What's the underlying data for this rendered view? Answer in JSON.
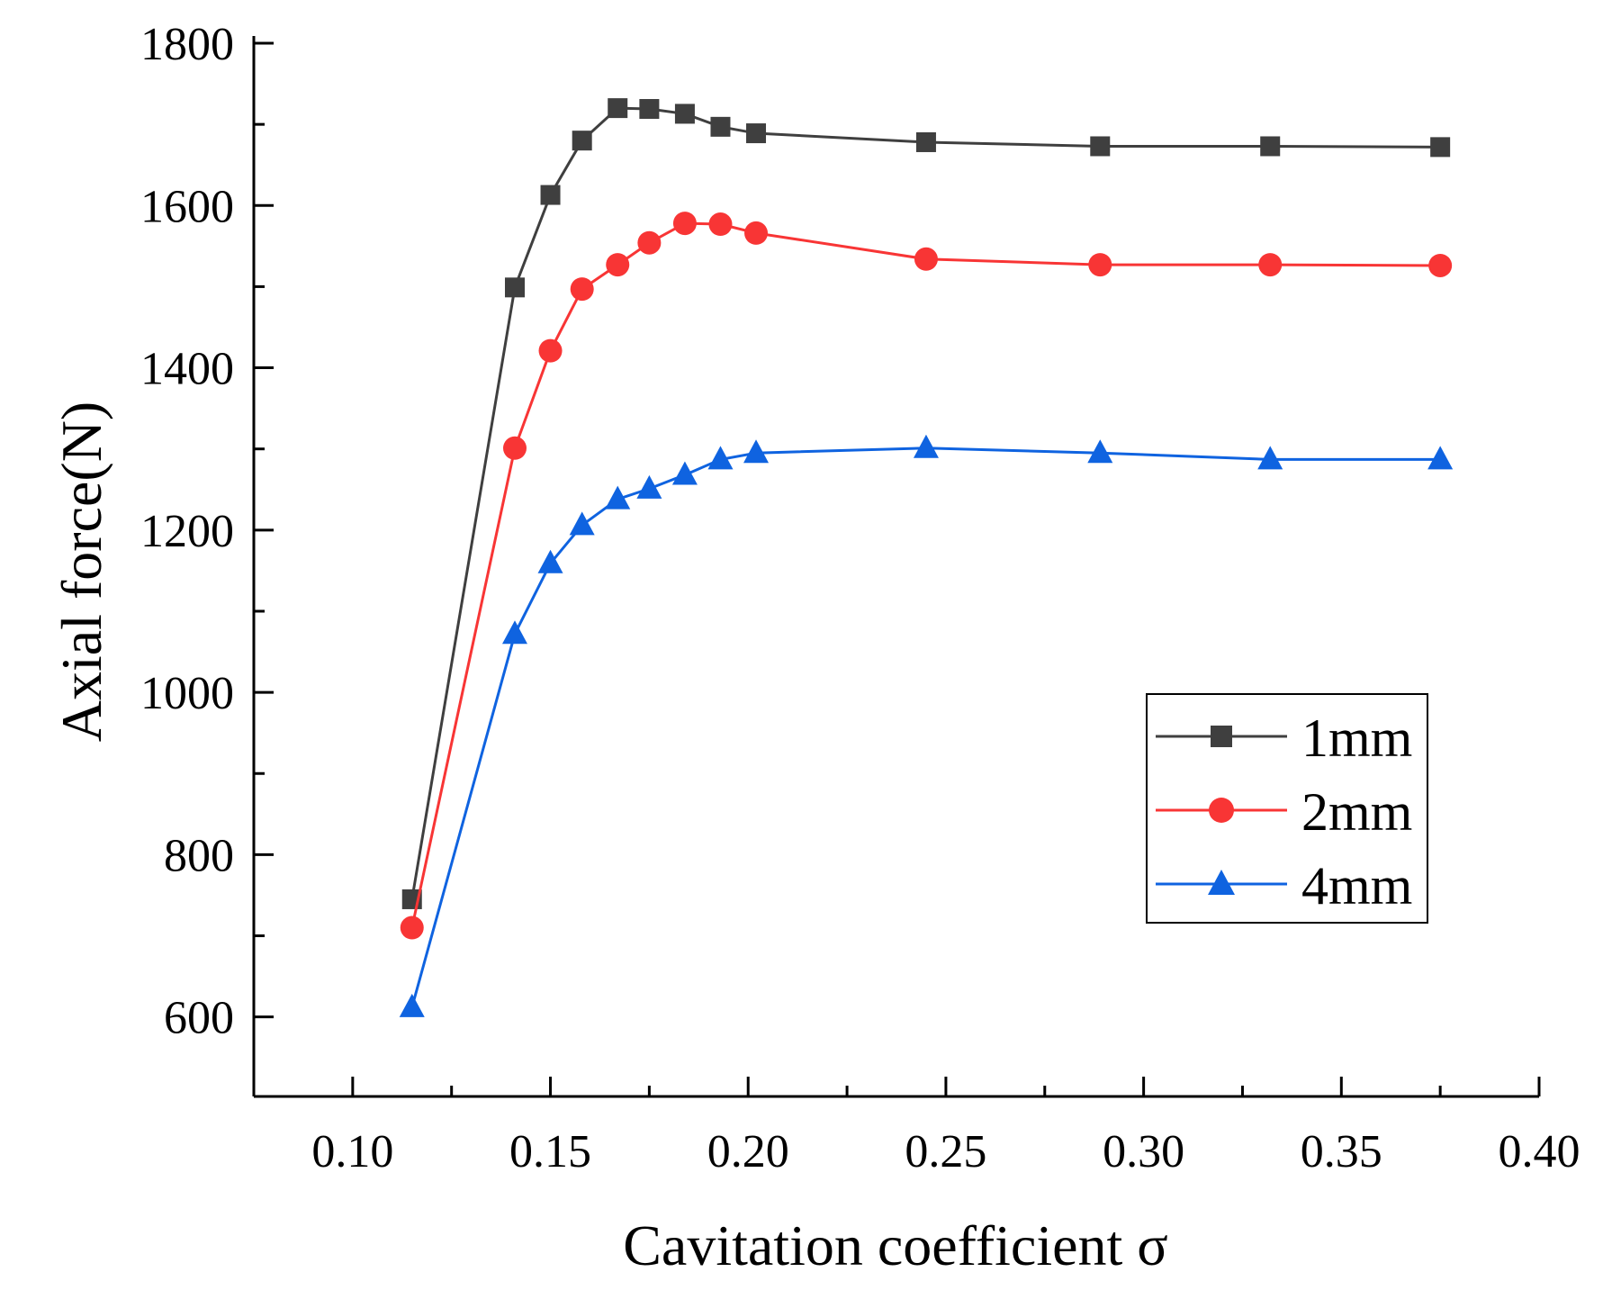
{
  "chart_data": {
    "type": "line",
    "title": "",
    "xlabel": "Cavitation coefficient σ",
    "ylabel": "Axial force(N)",
    "xlim": [
      0.075,
      0.4
    ],
    "ylim": [
      502,
      1800
    ],
    "xticks": [
      0.1,
      0.15,
      0.2,
      0.25,
      0.3,
      0.35,
      0.4
    ],
    "xtick_labels": [
      "0.10",
      "0.15",
      "0.20",
      "0.25",
      "0.30",
      "0.35",
      "0.40"
    ],
    "yticks": [
      600,
      800,
      1000,
      1200,
      1400,
      1600,
      1800
    ],
    "ytick_labels": [
      "600",
      "800",
      "1000",
      "1200",
      "1400",
      "1600",
      "1800"
    ],
    "grid": false,
    "legend_position": "center-right",
    "x": [
      0.115,
      0.141,
      0.15,
      0.158,
      0.167,
      0.175,
      0.184,
      0.193,
      0.202,
      0.245,
      0.289,
      0.332,
      0.375
    ],
    "series": [
      {
        "name": "1mm",
        "color": "#3f3f3f",
        "marker": "square",
        "values": [
          745,
          1499,
          1613,
          1680,
          1720,
          1719,
          1713,
          1697,
          1689,
          1678,
          1673,
          1673,
          1672
        ]
      },
      {
        "name": "2mm",
        "color": "#f83535",
        "marker": "circle",
        "values": [
          710,
          1301,
          1421,
          1497,
          1527,
          1554,
          1578,
          1577,
          1566,
          1534,
          1527,
          1527,
          1526
        ]
      },
      {
        "name": "4mm",
        "color": "#0f63e0",
        "marker": "triangle",
        "values": [
          612,
          1072,
          1159,
          1206,
          1238,
          1251,
          1268,
          1287,
          1295,
          1301,
          1295,
          1287,
          1287
        ]
      }
    ]
  }
}
